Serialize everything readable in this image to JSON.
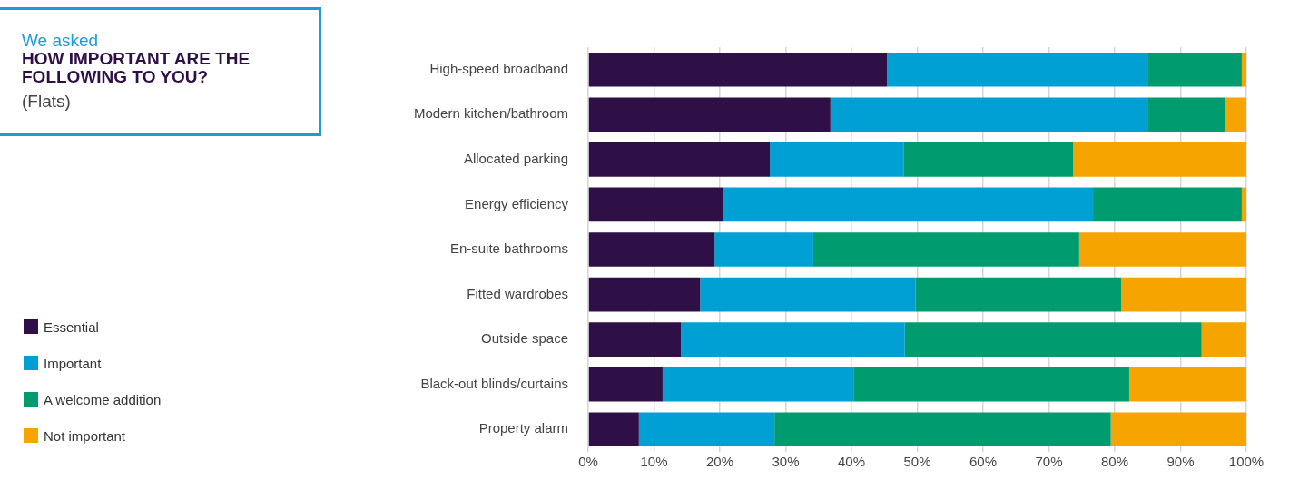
{
  "chart_data": {
    "type": "bar",
    "orientation": "horizontal",
    "stacked": true,
    "title": "We asked HOW IMPORTANT ARE THE FOLLOWING TO YOU?",
    "subtitle": "(Flats)",
    "categories": [
      "High-speed broadband",
      "Modern kitchen/bathroom",
      "Allocated parking",
      "Energy efficiency",
      "En-suite bathrooms",
      "Fitted wardrobes",
      "Outside space",
      "Black-out blinds/curtains",
      "Property alarm"
    ],
    "series": [
      {
        "name": "Essential",
        "color": "#2e1046",
        "values": [
          45.4,
          36.8,
          27.6,
          20.6,
          19.2,
          17.0,
          14.1,
          11.3,
          7.7
        ]
      },
      {
        "name": "Important",
        "color": "#009fd4",
        "values": [
          39.7,
          48.3,
          20.3,
          56.1,
          15.0,
          32.7,
          34.0,
          29.0,
          20.6
        ]
      },
      {
        "name": "A welcome addition",
        "color": "#009b6e",
        "values": [
          14.2,
          11.6,
          25.8,
          22.6,
          40.4,
          31.3,
          45.1,
          41.9,
          51.1
        ]
      },
      {
        "name": "Not important",
        "color": "#f6a500",
        "values": [
          0.7,
          3.3,
          26.3,
          0.7,
          25.4,
          19.0,
          6.8,
          17.8,
          20.6
        ]
      }
    ],
    "xlim": [
      0,
      100
    ],
    "xticks": [
      {
        "value": 0,
        "label": "0%"
      },
      {
        "value": 10,
        "label": "10%"
      },
      {
        "value": 20,
        "label": "20%"
      },
      {
        "value": 30,
        "label": "30%"
      },
      {
        "value": 40,
        "label": "40%"
      },
      {
        "value": 50,
        "label": "50%"
      },
      {
        "value": 60,
        "label": "60%"
      },
      {
        "value": 70,
        "label": "70%"
      },
      {
        "value": 80,
        "label": "80%"
      },
      {
        "value": 90,
        "label": "90%"
      },
      {
        "value": 100,
        "label": "100%"
      }
    ],
    "grid": "x",
    "legend": "left"
  }
}
